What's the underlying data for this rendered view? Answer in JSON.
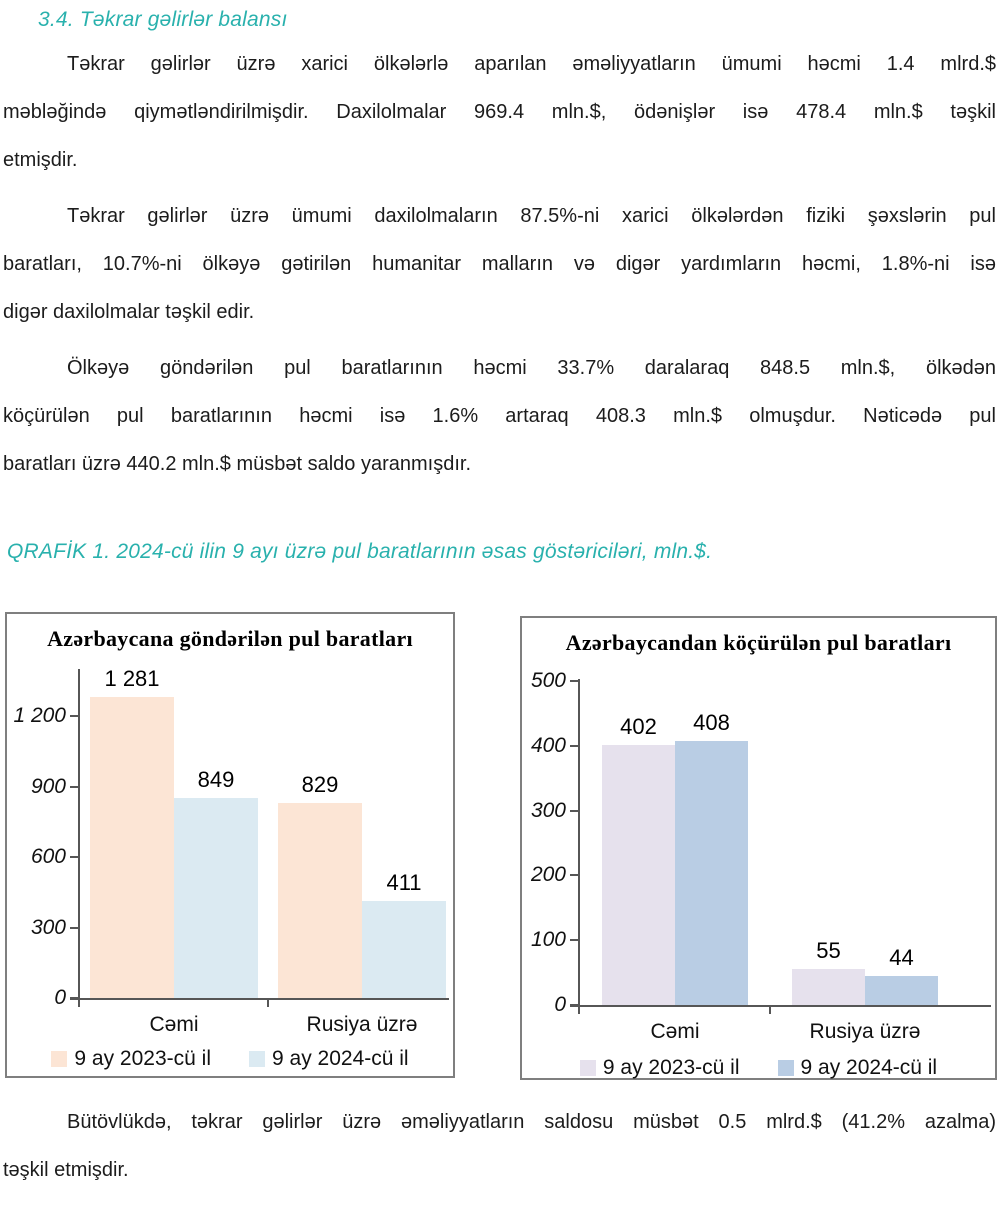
{
  "page": {
    "accent_color": "#29b1ad",
    "heading": "3.4. Təkrar gəlirlər balansı",
    "paragraph_1_lines": [
      "Təkrar gəlirlər üzrə xarici ölkələrlə aparılan əməliyyatların ümumi həcmi 1.4 mlrd.$",
      "məbləğində qiymətləndirilmişdir. Daxilolmalar 969.4 mln.$, ödənişlər isə 478.4 mln.$ təşkil",
      "etmişdir."
    ],
    "paragraph_2_lines": [
      "Təkrar gəlirlər üzrə ümumi daxilolmaların 87.5%-ni xarici ölkələrdən fiziki şəxslərin pul",
      "baratları, 10.7%-ni ölkəyə gətirilən humanitar malların və digər yardımların həcmi, 1.8%-ni isə",
      "digər daxilolmalar təşkil edir."
    ],
    "paragraph_3_lines": [
      "Ölkəyə göndərilən pul baratlarının həcmi 33.7% daralaraq 848.5 mln.$, ölkədən",
      "köçürülən pul baratlarının həcmi isə 1.6% artaraq 408.3 mln.$ olmuşdur. Nəticədə pul",
      "baratları üzrə 440.2 mln.$ müsbət saldo yaranmışdır."
    ],
    "chart_caption": "QRAFİK 1. 2024-cü ilin 9 ayı üzrə pul baratlarının əsas göstəriciləri, mln.$.",
    "closing_paragraph_lines": [
      "Bütövlükdə, təkrar gəlirlər üzrə əməliyyatların saldosu müsbət 0.5 mlrd.$ (41.2% azalma)",
      "təşkil etmişdir."
    ]
  },
  "chart_data": [
    {
      "type": "bar",
      "title": "Azərbaycana göndərilən pul baratları",
      "categories": [
        "Cəmi",
        "Rusiya üzrə"
      ],
      "series": [
        {
          "name": "9 ay 2023-cü il",
          "values": [
            1281,
            829
          ],
          "labels": [
            "1 281",
            "829"
          ],
          "color": "#fce5d5"
        },
        {
          "name": "9 ay 2024-cü il",
          "values": [
            849,
            411
          ],
          "labels": [
            "849",
            "411"
          ],
          "color": "#dbeaf2"
        }
      ],
      "ylabel": "",
      "xlabel": "",
      "ylim": [
        0,
        1400
      ],
      "yticks": [
        0,
        300,
        600,
        900,
        1200
      ],
      "ytick_labels": [
        "0",
        "300",
        "600",
        "900",
        "1 200"
      ],
      "grid": false,
      "legend_position": "bottom"
    },
    {
      "type": "bar",
      "title": "Azərbaycandan köçürülən pul baratları",
      "categories": [
        "Cəmi",
        "Rusiya üzrə"
      ],
      "series": [
        {
          "name": "9 ay 2023-cü il",
          "values": [
            402,
            55
          ],
          "labels": [
            "402",
            "55"
          ],
          "color": "#e6e1ed"
        },
        {
          "name": "9 ay 2024-cü il",
          "values": [
            408,
            44
          ],
          "labels": [
            "408",
            "44"
          ],
          "color": "#b9cde4"
        }
      ],
      "ylabel": "",
      "xlabel": "",
      "ylim": [
        0,
        503
      ],
      "yticks": [
        0,
        100,
        200,
        300,
        400,
        500
      ],
      "ytick_labels": [
        "0",
        "100",
        "200",
        "300",
        "400",
        "500"
      ],
      "grid": false,
      "legend_position": "bottom"
    }
  ]
}
